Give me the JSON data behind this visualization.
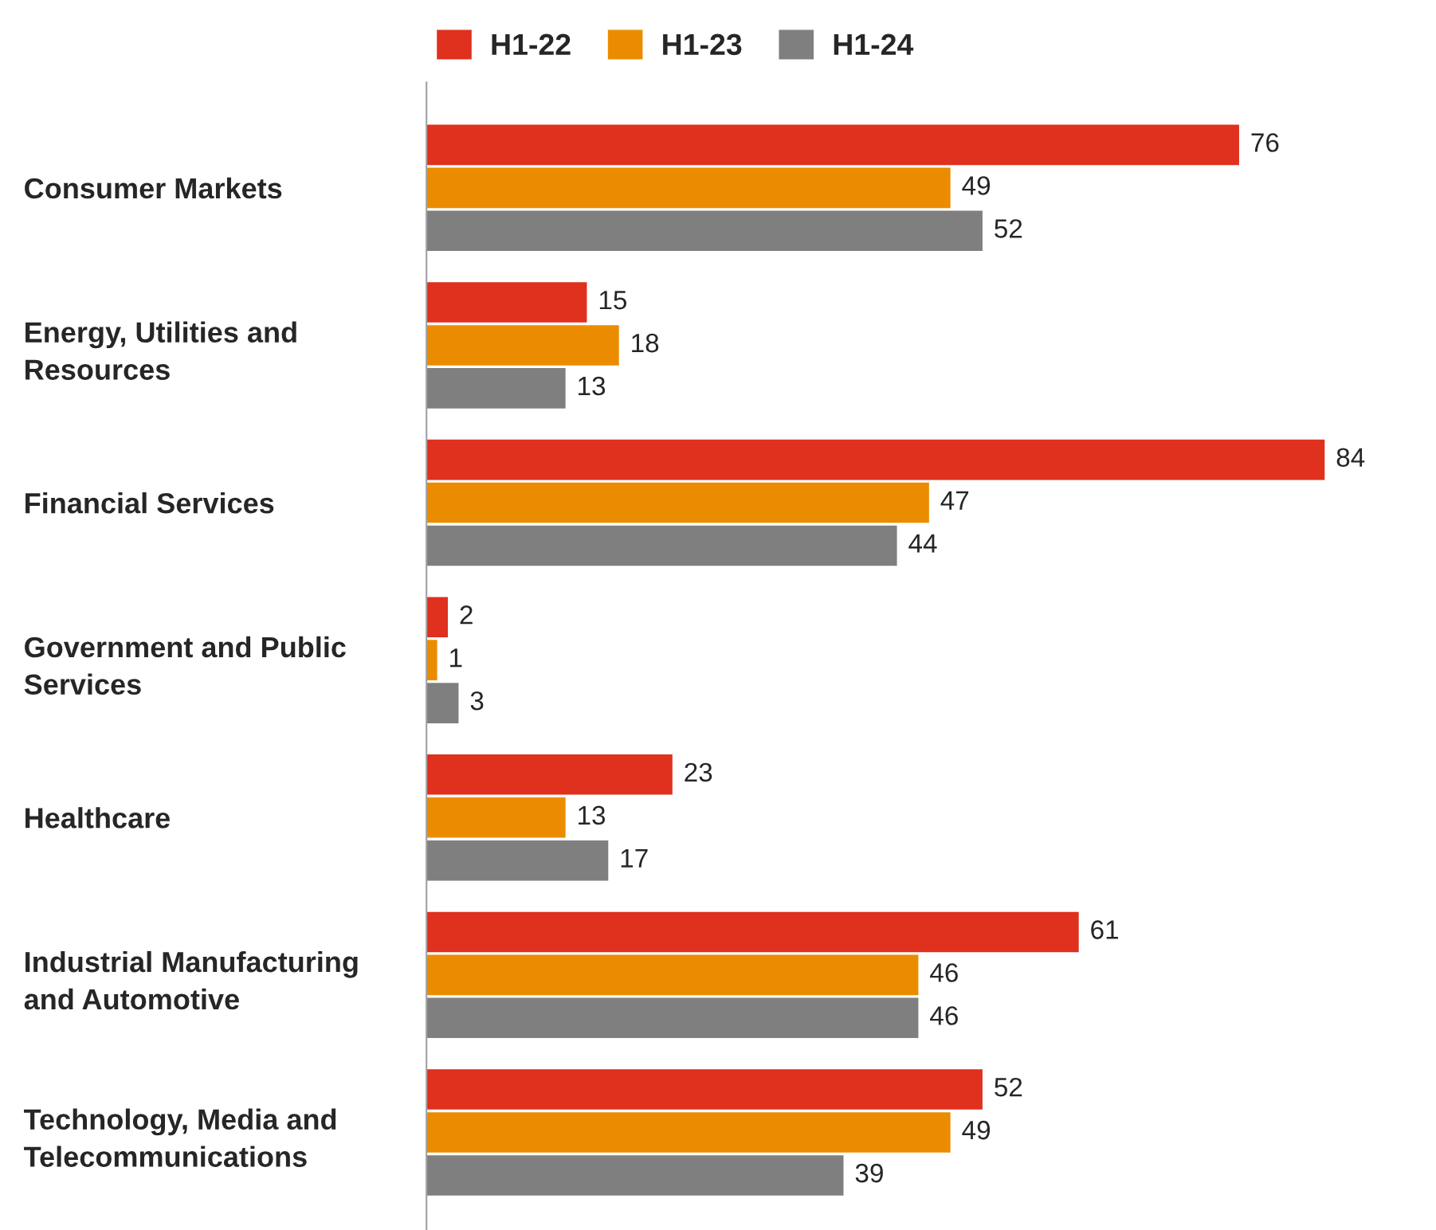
{
  "chart_data": {
    "type": "bar",
    "orientation": "horizontal",
    "categories": [
      "Consumer Markets",
      "Energy, Utilities and\nResources",
      "Financial Services",
      "Government and Public\nServices",
      "Healthcare",
      "Industrial Manufacturing\nand Automotive",
      "Technology, Media and\nTelecommunications"
    ],
    "series": [
      {
        "name": "H1-22",
        "color": "#e0301e",
        "values": [
          76,
          15,
          84,
          2,
          23,
          61,
          52
        ]
      },
      {
        "name": "H1-23",
        "color": "#eb8c00",
        "values": [
          49,
          18,
          47,
          1,
          13,
          46,
          49
        ]
      },
      {
        "name": "H1-24",
        "color": "#7f7f7f",
        "values": [
          52,
          13,
          44,
          3,
          17,
          46,
          39
        ]
      }
    ],
    "data_labels": true,
    "legend": "top",
    "grid": false,
    "tick_labels": "y"
  }
}
